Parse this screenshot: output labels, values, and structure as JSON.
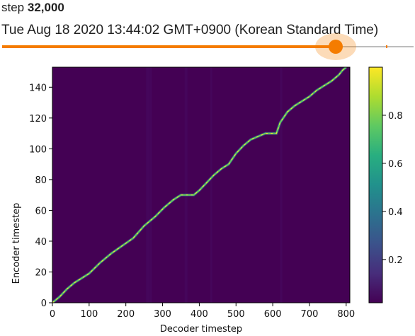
{
  "header": {
    "step_prefix": "step ",
    "step_value": "32,000",
    "timestamp": "Tue Aug 18 2020 13:44:02 GMT+0900 (Korean Standard Time)"
  },
  "slider": {
    "position_fraction": 0.81,
    "accent_color": "#f57c00",
    "track_color": "#bdbdbd"
  },
  "chart_data": {
    "type": "heatmap",
    "title": "",
    "xlabel": "Decoder timestep",
    "ylabel": "Encoder timestep",
    "xlim": [
      0,
      810
    ],
    "ylim": [
      0,
      153
    ],
    "x_ticks": [
      0,
      100,
      200,
      300,
      400,
      500,
      600,
      700,
      800
    ],
    "y_ticks": [
      0,
      20,
      40,
      60,
      80,
      100,
      120,
      140
    ],
    "colorbar_ticks": [
      "0.2",
      "0.4",
      "0.6",
      "0.8"
    ],
    "colorbar_range": [
      0.02,
      1.0
    ],
    "colormap": "viridis",
    "background_color": "#440154",
    "alignment_path": {
      "x": [
        0,
        20,
        40,
        60,
        80,
        100,
        130,
        160,
        190,
        220,
        250,
        280,
        305,
        330,
        350,
        370,
        385,
        400,
        420,
        440,
        460,
        480,
        500,
        520,
        540,
        560,
        580,
        600,
        610,
        620,
        640,
        660,
        680,
        700,
        720,
        740,
        760,
        780,
        790,
        800
      ],
      "y": [
        0,
        4,
        9,
        13,
        16,
        19,
        26,
        32,
        37,
        42,
        50,
        56,
        62,
        67,
        70,
        70,
        70,
        73,
        78,
        83,
        87,
        90,
        97,
        102,
        106,
        108,
        110,
        110,
        110,
        117,
        124,
        128,
        131,
        134,
        138,
        141,
        144,
        148,
        151,
        153
      ]
    }
  }
}
